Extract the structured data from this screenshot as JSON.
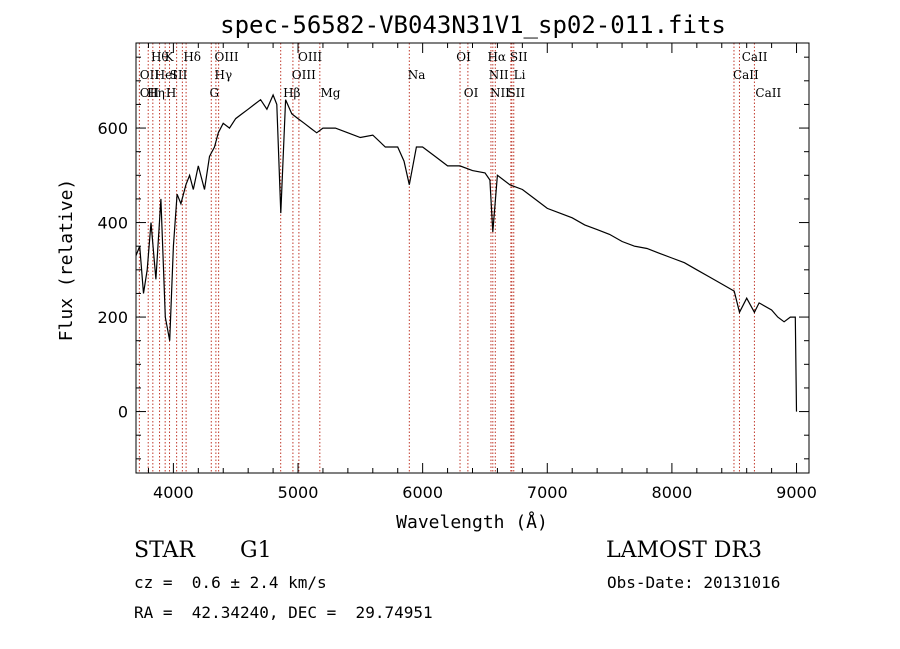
{
  "chart_data": {
    "type": "line",
    "title": "spec-56582-VB043N31V1_sp02-011.fits",
    "xlabel": "Wavelength (Å)",
    "ylabel": "Flux (relative)",
    "xlim": [
      3700,
      9100
    ],
    "ylim": [
      -130,
      780
    ],
    "xticks": [
      4000,
      5000,
      6000,
      7000,
      8000,
      9000
    ],
    "yticks": [
      0,
      200,
      400,
      600
    ],
    "grid": false,
    "series": [
      {
        "name": "flux",
        "x": [
          3700,
          3730,
          3760,
          3790,
          3820,
          3860,
          3900,
          3935,
          3970,
          4000,
          4030,
          4060,
          4100,
          4130,
          4160,
          4200,
          4250,
          4290,
          4330,
          4360,
          4400,
          4450,
          4500,
          4550,
          4600,
          4650,
          4700,
          4750,
          4800,
          4830,
          4862,
          4900,
          4950,
          5000,
          5050,
          5100,
          5150,
          5200,
          5300,
          5400,
          5500,
          5600,
          5700,
          5800,
          5850,
          5893,
          5950,
          6000,
          6100,
          6200,
          6300,
          6400,
          6500,
          6540,
          6563,
          6600,
          6700,
          6800,
          6900,
          7000,
          7100,
          7200,
          7300,
          7400,
          7500,
          7600,
          7700,
          7800,
          7900,
          8000,
          8100,
          8200,
          8300,
          8400,
          8500,
          8542,
          8600,
          8662,
          8700,
          8800,
          8850,
          8900,
          8950,
          8990,
          9000
        ],
        "y": [
          330,
          350,
          250,
          300,
          400,
          280,
          450,
          200,
          150,
          350,
          460,
          440,
          480,
          500,
          470,
          520,
          470,
          540,
          560,
          590,
          610,
          600,
          620,
          630,
          640,
          650,
          660,
          640,
          670,
          650,
          420,
          660,
          630,
          620,
          610,
          600,
          590,
          600,
          600,
          590,
          580,
          585,
          560,
          560,
          530,
          480,
          560,
          560,
          540,
          520,
          520,
          510,
          505,
          490,
          380,
          500,
          480,
          470,
          450,
          430,
          420,
          410,
          395,
          385,
          375,
          360,
          350,
          345,
          335,
          325,
          315,
          300,
          285,
          270,
          255,
          210,
          240,
          210,
          230,
          215,
          200,
          190,
          200,
          200,
          0
        ]
      }
    ],
    "lines_top": [
      "Hθ",
      "K",
      "Hδ",
      "OIII",
      "OIII",
      "OI",
      "Hα",
      "SII",
      "CaII"
    ],
    "lines_mid": [
      "OII",
      "HeI",
      "SII",
      "Hγ",
      "OIII",
      "Na",
      "NII",
      "Li",
      "CaII"
    ],
    "lines_bot": [
      "OII",
      "Hη",
      "H",
      "G",
      "Hβ",
      "Mg",
      "OI",
      "NII",
      "SII",
      "CaII"
    ],
    "line_wavelengths": [
      3727,
      3798,
      3835,
      3889,
      3934,
      3969,
      4026,
      4072,
      4102,
      4304,
      4341,
      4363,
      4861,
      4959,
      5007,
      5175,
      5893,
      6300,
      6363,
      6548,
      6563,
      6583,
      6708,
      6716,
      6731,
      8498,
      8542,
      8662
    ]
  },
  "info": {
    "class_label": "STAR",
    "subclass_label": "G1",
    "survey": "LAMOST DR3",
    "redshift": "cz =  0.6 ± 2.4 km/s",
    "obs_date": "Obs-Date: 20131016",
    "coords": "RA =  42.34240, DEC =  29.74951"
  },
  "colors": {
    "line_marker": "#c0392b",
    "axis": "#000000",
    "spectrum": "#000000"
  }
}
